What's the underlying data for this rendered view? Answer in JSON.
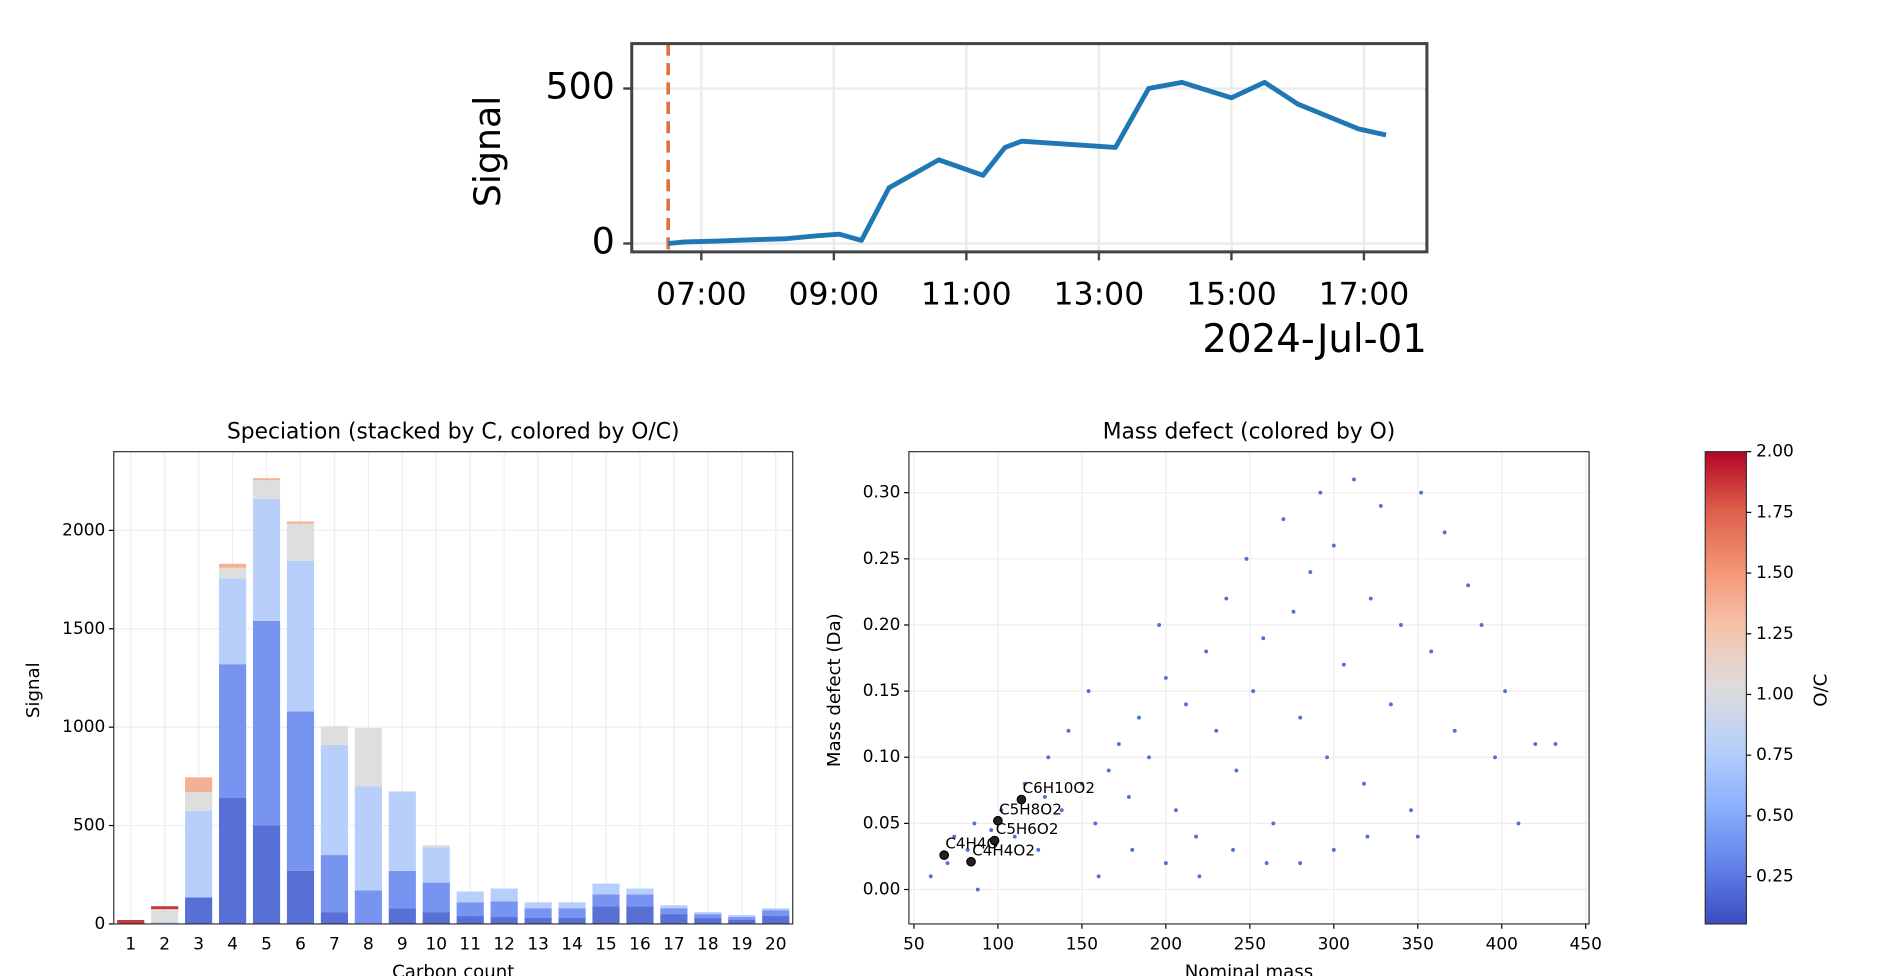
{
  "chart_data": [
    {
      "type": "line",
      "xlabel": "2024-Jul-01",
      "ylabel": "Signal",
      "x": [
        "06:30",
        "06:45",
        "07:15",
        "07:45",
        "08:15",
        "08:45",
        "09:05",
        "09:25",
        "09:50",
        "10:15",
        "10:35",
        "11:15",
        "11:35",
        "11:50",
        "13:15",
        "13:45",
        "14:15",
        "15:00",
        "15:30",
        "16:00",
        "16:55",
        "17:20"
      ],
      "series": [
        {
          "color": "#1f77b4",
          "values": [
            0,
            5,
            8,
            12,
            15,
            25,
            30,
            10,
            180,
            230,
            270,
            220,
            310,
            330,
            310,
            500,
            520,
            470,
            520,
            450,
            370,
            350
          ]
        }
      ],
      "xlim": [
        "05:57",
        "17:57"
      ],
      "xticks": [
        "07:00",
        "09:00",
        "11:00",
        "13:00",
        "15:00",
        "17:00"
      ],
      "ylim": [
        -27,
        645
      ],
      "yticks": [
        0,
        500
      ],
      "grid": true,
      "vline": {
        "x": "06:30",
        "color": "#e0703f"
      }
    },
    {
      "type": "stacked_bar",
      "title": "Speciation (stacked by C, colored by O/C)",
      "xlabel": "Carbon count",
      "ylabel": "Signal",
      "categories": [
        "1",
        "2",
        "3",
        "4",
        "5",
        "6",
        "7",
        "8",
        "9",
        "10",
        "11",
        "12",
        "13",
        "14",
        "15",
        "16",
        "17",
        "18",
        "19",
        "20"
      ],
      "series": [
        {
          "color": "#4a63d3",
          "values": [
            0,
            0,
            135,
            640,
            500,
            270,
            60,
            0,
            80,
            60,
            40,
            35,
            30,
            30,
            90,
            90,
            50,
            30,
            20,
            40
          ]
        },
        {
          "color": "#6b8cef",
          "values": [
            0,
            0,
            0,
            680,
            1040,
            810,
            290,
            170,
            190,
            150,
            70,
            80,
            50,
            50,
            60,
            60,
            30,
            20,
            15,
            30
          ]
        },
        {
          "color": "#b3cbfb",
          "values": [
            0,
            10,
            440,
            435,
            620,
            765,
            560,
            530,
            400,
            180,
            55,
            65,
            30,
            30,
            55,
            30,
            15,
            10,
            10,
            10
          ]
        },
        {
          "color": "#dcdbdb",
          "values": [
            0,
            65,
            95,
            55,
            95,
            190,
            95,
            295,
            5,
            10,
            0,
            0,
            0,
            0,
            0,
            0,
            0,
            0,
            0,
            0
          ]
        },
        {
          "color": "#f3a98a",
          "values": [
            0,
            0,
            75,
            20,
            10,
            10,
            0,
            0,
            0,
            0,
            0,
            0,
            0,
            0,
            0,
            0,
            0,
            0,
            0,
            0
          ]
        },
        {
          "color": "#c0282d",
          "values": [
            20,
            15,
            0,
            0,
            0,
            0,
            0,
            0,
            0,
            0,
            0,
            0,
            0,
            0,
            0,
            0,
            0,
            0,
            0,
            0
          ]
        }
      ],
      "ylim": [
        0,
        2400
      ],
      "yticks": [
        0,
        500,
        1000,
        1500,
        2000
      ],
      "grid": true
    },
    {
      "type": "scatter",
      "title": "Mass defect (colored by O)",
      "xlabel": "Nominal mass",
      "ylabel": "Mass defect (Da)",
      "series": [
        {
          "color": "#4f6fe0",
          "x": [
            60,
            70,
            74,
            82,
            86,
            88,
            96,
            102,
            110,
            116,
            124,
            128,
            130,
            138,
            142,
            150,
            154,
            158,
            166,
            172,
            178,
            184,
            190,
            196,
            200,
            206,
            212,
            218,
            224,
            230,
            236,
            242,
            248,
            252,
            258,
            264,
            270,
            276,
            280,
            286,
            292,
            296,
            300,
            306,
            312,
            318,
            322,
            328,
            334,
            340,
            346,
            352,
            358,
            366,
            372,
            380,
            388,
            396,
            402,
            410,
            420,
            432,
            260,
            240,
            220,
            280,
            300,
            320,
            350,
            200,
            180,
            160
          ],
          "values": [
            0.01,
            0.02,
            0.04,
            0.03,
            0.05,
            0.0,
            0.045,
            0.06,
            0.04,
            0.08,
            0.03,
            0.07,
            0.1,
            0.06,
            0.12,
            0.08,
            0.15,
            0.05,
            0.09,
            0.11,
            0.07,
            0.13,
            0.1,
            0.2,
            0.16,
            0.06,
            0.14,
            0.04,
            0.18,
            0.12,
            0.22,
            0.09,
            0.25,
            0.15,
            0.19,
            0.05,
            0.28,
            0.21,
            0.13,
            0.24,
            0.3,
            0.1,
            0.26,
            0.17,
            0.31,
            0.08,
            0.22,
            0.29,
            0.14,
            0.2,
            0.06,
            0.3,
            0.18,
            0.27,
            0.12,
            0.23,
            0.2,
            0.1,
            0.15,
            0.05,
            0.11,
            0.11,
            0.02,
            0.03,
            0.01,
            0.02,
            0.03,
            0.04,
            0.04,
            0.02,
            0.03,
            0.01
          ]
        },
        {
          "color": "#222222",
          "x": [
            68,
            84,
            98,
            100,
            114
          ],
          "values": [
            0.026,
            0.021,
            0.037,
            0.052,
            0.068
          ],
          "point_labels": [
            "C4H4O",
            "C4H4O2",
            "C5H6O2",
            "C5H8O2",
            "C6H10O2"
          ]
        }
      ],
      "xlim": [
        47,
        452
      ],
      "xticks": [
        50,
        100,
        150,
        200,
        250,
        300,
        350,
        400,
        450
      ],
      "ylim": [
        -0.026,
        0.331
      ],
      "yticks": [
        {
          "value": 0,
          "label": "0.00"
        },
        {
          "value": 0.05,
          "label": "0.05"
        },
        {
          "value": 0.1,
          "label": "0.10"
        },
        {
          "value": 0.15,
          "label": "0.15"
        },
        {
          "value": 0.2,
          "label": "0.20"
        },
        {
          "value": 0.25,
          "label": "0.25"
        },
        {
          "value": 0.3,
          "label": "0.30"
        }
      ],
      "grid": true
    },
    {
      "type": "colorbar",
      "label": "O/C",
      "ylim": [
        0.055,
        2.0
      ],
      "yticks": [
        {
          "value": 0.25,
          "label": "0.25"
        },
        {
          "value": 0.5,
          "label": "0.50"
        },
        {
          "value": 0.75,
          "label": "0.75"
        },
        {
          "value": 1,
          "label": "1.00"
        },
        {
          "value": 1.25,
          "label": "1.25"
        },
        {
          "value": 1.5,
          "label": "1.50"
        },
        {
          "value": 1.75,
          "label": "1.75"
        },
        {
          "value": 2,
          "label": "2.00"
        }
      ],
      "colors": [
        "#3b4cc0",
        "#6282ea",
        "#8db0fe",
        "#b8d0f9",
        "#dddcdc",
        "#f5c4ac",
        "#f39475",
        "#dd5f4b",
        "#b40426"
      ]
    }
  ]
}
